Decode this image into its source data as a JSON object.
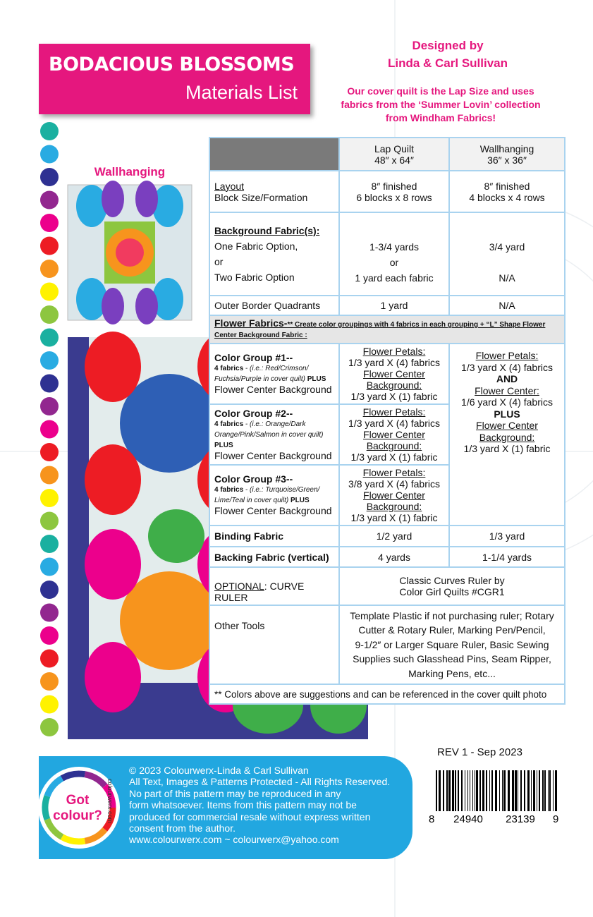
{
  "header": {
    "title": "BODACIOUS BLOSSOMS",
    "subtitle": "Materials List"
  },
  "designer": {
    "label": "Designed by",
    "names": "Linda & Carl Sullivan"
  },
  "cover_note": [
    "Our cover quilt  is the Lap Size and uses",
    "fabrics from the ‘Summer Lovin’ collection",
    "from Windham Fabrics!"
  ],
  "wallhanging_label": "Wallhanging",
  "table": {
    "columns": [
      {
        "name": "Lap Quilt",
        "size": "48″ x 64″"
      },
      {
        "name": "Wallhanging",
        "size": "36″ x 36″"
      }
    ],
    "layout": {
      "label": "Layout",
      "sublabel": "Block Size/Formation",
      "lap": [
        "8″ finished",
        "6 blocks x 8 rows"
      ],
      "wall": [
        "8″ finished",
        "4 blocks x 4 rows"
      ]
    },
    "background": {
      "label": "Background Fabric(s):",
      "options": [
        "One Fabric Option,",
        "or",
        "Two Fabric Option"
      ],
      "lap": [
        "1-3/4 yards",
        "or",
        "1 yard each fabric"
      ],
      "wall": [
        "3/4 yard",
        "N/A"
      ]
    },
    "outer_border": {
      "label": "Outer Border Quadrants",
      "lap": "1 yard",
      "wall": "N/A"
    },
    "flower_fabrics": {
      "label": "Flower Fabrics-",
      "note": "** Create color groupings with 4 fabrics in each grouping +  “L” Shape Flower Center  Background Fabric :"
    },
    "color_groups": [
      {
        "title": "Color Group #1--",
        "fabrics": "4 fabrics",
        "example": " - (i.e.: Red/Crimson/ Fuchsia/Purple in cover quilt) ",
        "plus": "PLUS",
        "rest": "Flower Center Background",
        "lap": [
          "Flower Petals:",
          "1/3 yard X (4) fabrics",
          "Flower Center Background:",
          "1/3 yard X (1) fabric"
        ]
      },
      {
        "title": "Color Group #2--",
        "fabrics": "4 fabrics",
        "example": " - (i.e.: Orange/Dark Orange/Pink/Salmon in cover quilt) ",
        "plus": "PLUS",
        "rest": "Flower Center Background",
        "lap": [
          "Flower Petals:",
          "1/3 yard X (4) fabrics",
          "Flower Center Background:",
          "1/3 yard X (1) fabric"
        ]
      },
      {
        "title": "Color Group #3--",
        "fabrics": "4 fabrics",
        "example": " - (i.e.: Turquoise/Green/ Lime/Teal in cover quilt) ",
        "plus": "PLUS",
        "rest": "Flower Center Background",
        "lap": [
          "Flower Petals:",
          "3/8 yard X (4) fabrics",
          "Flower Center Background:",
          "1/3 yard X (1) fabric"
        ]
      }
    ],
    "wall_flower": [
      "Flower Petals:",
      "1/3 yard X (4) fabrics",
      "AND",
      "Flower Center:",
      "1/6 yard X (4) fabrics",
      "PLUS",
      "Flower Center Background:",
      "1/3 yard X (1) fabric"
    ],
    "binding": {
      "label": "Binding Fabric",
      "lap": "1/2 yard",
      "wall": "1/3 yard"
    },
    "backing": {
      "label": "Backing Fabric (vertical)",
      "lap": "4 yards",
      "wall": "1-1/4 yards"
    },
    "ruler": {
      "label_em": "OPTIONAL",
      "label": ": CURVE RULER",
      "value": [
        "Classic Curves Ruler by",
        "Color Girl Quilts #CGR1"
      ]
    },
    "other_tools": {
      "label": "Other Tools",
      "value": [
        "Template Plastic if not purchasing ruler; Rotary",
        "Cutter & Rotary Ruler, Marking Pen/Pencil,",
        "9-1/2″ or Larger Square Ruler, Basic Sewing",
        "Supplies such Glasshead Pins, Seam Ripper,",
        "Marking Pens, etc..."
      ]
    },
    "footnote": "** Colors above are suggestions and can be referenced in the cover quilt photo"
  },
  "revision": "REV 1 - Sep 2023",
  "footer": {
    "lines": [
      "© 2023 Colourwerx-Linda & Carl Sullivan",
      "All Text, Images & Patterns Protected - All Rights Reserved.",
      "No part of this pattern may be reproduced  in any",
      "form whatsoever.   Items from this pattern may not be",
      "produced for commercial resale without express written",
      "consent from the author.",
      "www.colourwerx.com ~ colourwerx@yahoo.com"
    ],
    "logo": {
      "line1": "Got",
      "line2": "colour?",
      "url": "colourwerx.com"
    }
  },
  "barcode": {
    "digits": [
      "8",
      "24940",
      "23139",
      "9"
    ]
  }
}
